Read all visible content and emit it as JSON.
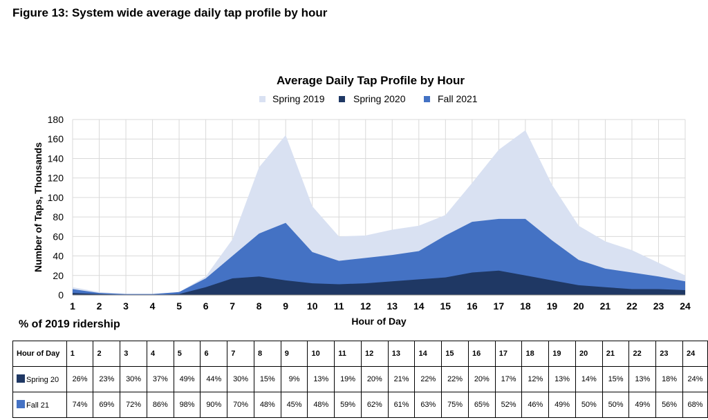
{
  "figure_title": "Figure 13: System wide average daily tap profile by hour",
  "table_title": "% of 2019 ridership",
  "colors": {
    "spring2019": "#d9e1f2",
    "spring2020": "#1f3864",
    "fall2021": "#4472c4",
    "grid": "#d9d9d9"
  },
  "chart_data": {
    "type": "area",
    "title": "Average Daily Tap Profile by Hour",
    "xlabel": "Hour of Day",
    "ylabel": "Number of Taps, Thousands",
    "ylim": [
      0,
      180
    ],
    "yticks": [
      0,
      20,
      40,
      60,
      80,
      100,
      120,
      140,
      160,
      180
    ],
    "grid": true,
    "legend_position": "top-center",
    "x": [
      1,
      2,
      3,
      4,
      5,
      6,
      7,
      8,
      9,
      10,
      11,
      12,
      13,
      14,
      15,
      16,
      17,
      18,
      19,
      20,
      21,
      22,
      23,
      24
    ],
    "series": [
      {
        "name": "Spring 2019",
        "color": "#d9e1f2",
        "values": [
          8,
          3,
          1,
          1,
          3,
          19,
          57,
          131,
          164,
          91,
          60,
          61,
          67,
          71,
          82,
          115,
          149,
          169,
          113,
          71,
          55,
          46,
          33,
          20
        ]
      },
      {
        "name": "Spring 2020",
        "color": "#1f3864",
        "values": [
          2,
          1,
          0,
          0,
          1,
          8,
          17,
          19,
          15,
          12,
          11,
          12,
          14,
          16,
          18,
          23,
          25,
          20,
          15,
          10,
          8,
          6,
          6,
          5
        ]
      },
      {
        "name": "Fall 2021",
        "color": "#4472c4",
        "values": [
          6,
          2,
          1,
          1,
          3,
          17,
          40,
          63,
          74,
          44,
          35,
          38,
          41,
          45,
          61,
          75,
          78,
          78,
          56,
          36,
          27,
          23,
          19,
          14
        ]
      }
    ]
  },
  "table": {
    "header_label": "Hour of Day",
    "hours": [
      "1",
      "2",
      "3",
      "4",
      "5",
      "6",
      "7",
      "8",
      "9",
      "10",
      "11",
      "12",
      "13",
      "14",
      "15",
      "16",
      "17",
      "18",
      "19",
      "20",
      "21",
      "22",
      "23",
      "24"
    ],
    "rows": [
      {
        "label": "Spring 20",
        "color": "#1f3864",
        "values": [
          "26%",
          "23%",
          "30%",
          "37%",
          "49%",
          "44%",
          "30%",
          "15%",
          "9%",
          "13%",
          "19%",
          "20%",
          "21%",
          "22%",
          "22%",
          "20%",
          "17%",
          "12%",
          "13%",
          "14%",
          "15%",
          "13%",
          "18%",
          "24%"
        ]
      },
      {
        "label": "Fall 21",
        "color": "#4472c4",
        "values": [
          "74%",
          "69%",
          "72%",
          "86%",
          "98%",
          "90%",
          "70%",
          "48%",
          "45%",
          "48%",
          "59%",
          "62%",
          "61%",
          "63%",
          "75%",
          "65%",
          "52%",
          "46%",
          "49%",
          "50%",
          "50%",
          "49%",
          "56%",
          "68%"
        ]
      }
    ]
  }
}
